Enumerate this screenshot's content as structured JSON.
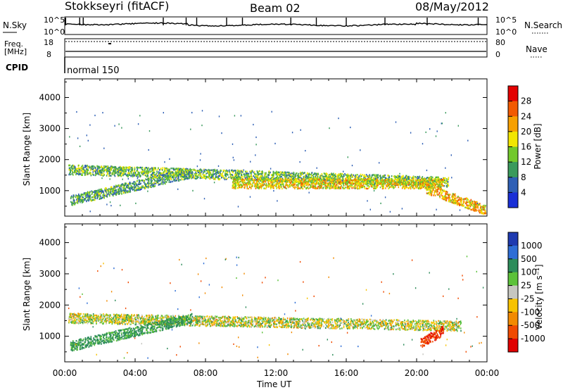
{
  "header": {
    "station": "Stokkseyri (fitACF)",
    "beam": "Beam 02",
    "date": "08/May/2012"
  },
  "top_panels": {
    "nsky_label": "N.Sky",
    "nsky_ticks": [
      "10^5",
      "10^0"
    ],
    "nsearch_label": "N.Search",
    "nsearch_ticks": [
      "10^5",
      "10^0"
    ],
    "freq_label": "Freq.",
    "freq_unit": "[MHz]",
    "freq_ticks": [
      "18",
      "8"
    ],
    "nave_label": "Nave",
    "nave_ticks": [
      "80",
      "0"
    ],
    "cpid_label": "CPID",
    "cpid_value": "normal 150"
  },
  "x_axis": {
    "ticks": [
      "00:00",
      "04:00",
      "08:00",
      "12:00",
      "16:00",
      "20:00",
      "00:00"
    ],
    "label": "Time UT"
  },
  "power_colorbar": {
    "label": "Power [dB]",
    "ticks": [
      "28",
      "24",
      "20",
      "16",
      "12",
      "8",
      "4"
    ],
    "colors": [
      "#e30000",
      "#f25a00",
      "#f7a000",
      "#f2e600",
      "#72c82b",
      "#3a9a5c",
      "#2e5fb5",
      "#1a2fd6"
    ]
  },
  "velocity_colorbar": {
    "label": "Velocity [m s⁻¹]",
    "ticks": [
      "1000",
      "500",
      "100",
      "25",
      "-25",
      "-100",
      "-500",
      "-1000"
    ],
    "colors": [
      "#1e3ab0",
      "#2e6ed6",
      "#2d8c5a",
      "#5cc23a",
      "#c6c6c0",
      "#f7c200",
      "#f28a00",
      "#f04a00",
      "#e00000"
    ]
  },
  "chart_data": [
    {
      "type": "heatmap",
      "title": "Power",
      "ylabel": "Slant Range [km]",
      "xlabel": "",
      "xlim": [
        0,
        24
      ],
      "ylim": [
        180,
        4600
      ],
      "y_ticks": [
        1000,
        2000,
        3000,
        4000
      ],
      "x_ticks_hours": [
        0,
        4,
        8,
        12,
        16,
        20,
        24
      ],
      "colorbar_label": "Power [dB]",
      "colorbar_range_db": [
        0,
        32
      ],
      "echo_bands": [
        {
          "name": "upper band",
          "time_range_h": [
            0.2,
            21.8
          ],
          "range_km_center": [
            1700,
            1300
          ],
          "power_db_typical": 12
        },
        {
          "name": "lower rising band",
          "time_range_h": [
            0.3,
            7.2
          ],
          "range_km_center": [
            700,
            1600
          ],
          "power_db_typical": 10
        },
        {
          "name": "dense midday band",
          "time_range_h": [
            9.5,
            21.5
          ],
          "range_km_center": [
            1250,
            1250
          ],
          "power_db_typical": 18
        },
        {
          "name": "post-sunset band",
          "time_range_h": [
            20.5,
            23.9
          ],
          "range_km_center": [
            1100,
            400
          ],
          "power_db_typical": 20
        }
      ]
    },
    {
      "type": "heatmap",
      "title": "Velocity",
      "ylabel": "Slant Range [km]",
      "xlabel": "Time UT",
      "xlim": [
        0,
        24
      ],
      "ylim": [
        180,
        4600
      ],
      "y_ticks": [
        1000,
        2000,
        3000,
        4000
      ],
      "x_ticks_hours": [
        0,
        4,
        8,
        12,
        16,
        20,
        24
      ],
      "colorbar_label": "Velocity [m s-1]",
      "colorbar_range": [
        -1000,
        1000
      ],
      "echo_bands": [
        {
          "name": "ground scatter band",
          "time_range_h": [
            0.2,
            22.5
          ],
          "range_km_center": [
            1600,
            1350
          ],
          "velocity_typical": 0
        },
        {
          "name": "morning ionospheric band",
          "time_range_h": [
            0.3,
            7.2
          ],
          "range_km_center": [
            700,
            1600
          ],
          "velocity_typical": 150
        },
        {
          "name": "evening negative patch",
          "time_range_h": [
            20.2,
            21.5
          ],
          "range_km_center": [
            800,
            1200
          ],
          "velocity_typical": -900
        }
      ]
    },
    {
      "type": "line",
      "title": "N.Sky / N.Search",
      "xlim": [
        0,
        24
      ],
      "values_description_none": true
    }
  ]
}
